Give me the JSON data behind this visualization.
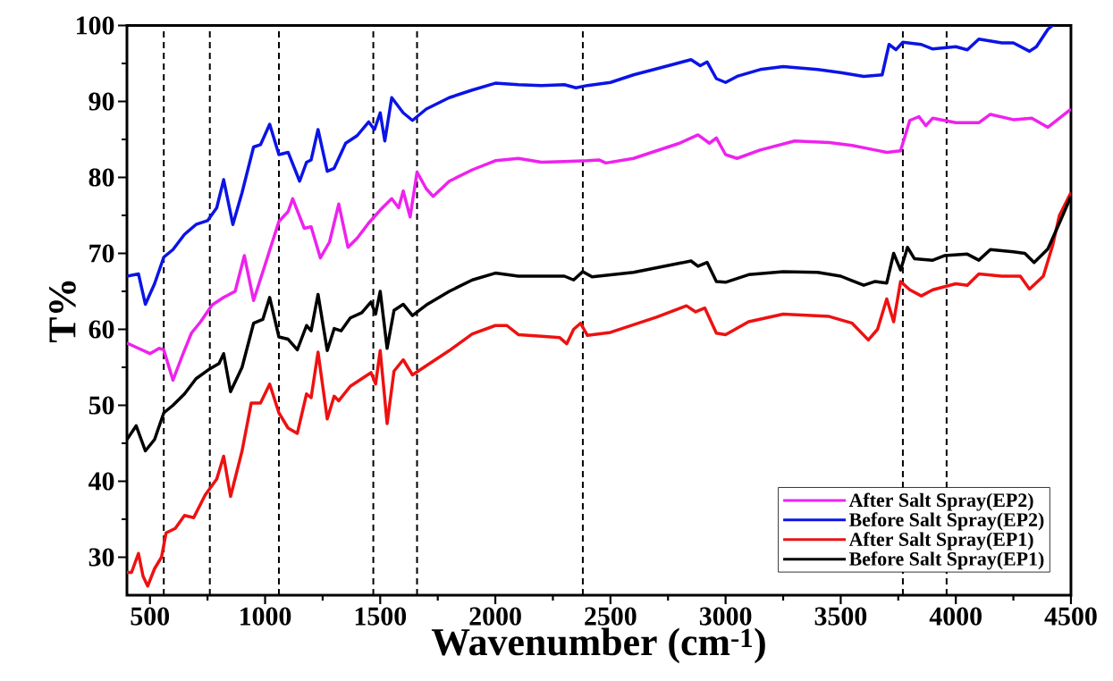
{
  "chart_data": {
    "type": "line",
    "xlabel": "Wavenumber (cm$^{-1}$)",
    "ylabel": "T%",
    "xlim": [
      400,
      4500
    ],
    "ylim": [
      25,
      100
    ],
    "xticks": [
      500,
      1000,
      1500,
      2000,
      2500,
      3000,
      3500,
      4000,
      4500
    ],
    "yticks": [
      30,
      40,
      50,
      60,
      70,
      80,
      90,
      100
    ],
    "legend": "bottom right",
    "grid": false,
    "marker": "none",
    "line_style": "solid",
    "ref_lines": [
      {
        "axis": "x",
        "value": 560,
        "line_style": "dashed",
        "color": "#000000"
      },
      {
        "axis": "x",
        "value": 760,
        "line_style": "dashed",
        "color": "#000000"
      },
      {
        "axis": "x",
        "value": 1060,
        "line_style": "dashed",
        "color": "#000000"
      },
      {
        "axis": "x",
        "value": 1470,
        "line_style": "dashed",
        "color": "#000000"
      },
      {
        "axis": "x",
        "value": 1660,
        "line_style": "dashed",
        "color": "#000000"
      },
      {
        "axis": "x",
        "value": 2380,
        "line_style": "dashed",
        "color": "#000000"
      },
      {
        "axis": "x",
        "value": 3770,
        "line_style": "dashed",
        "color": "#000000"
      },
      {
        "axis": "x",
        "value": 3960,
        "line_style": "dashed",
        "color": "#000000"
      }
    ],
    "series": [
      {
        "name": "After Salt Spray(EP2)",
        "color": "#ee22ee",
        "x": [
          400,
          450,
          500,
          540,
          560,
          600,
          640,
          680,
          720,
          770,
          820,
          870,
          910,
          950,
          1000,
          1060,
          1100,
          1120,
          1170,
          1200,
          1240,
          1280,
          1320,
          1360,
          1400,
          1450,
          1500,
          1550,
          1580,
          1600,
          1630,
          1660,
          1700,
          1730,
          1800,
          1900,
          2000,
          2100,
          2200,
          2300,
          2400,
          2450,
          2480,
          2600,
          2700,
          2800,
          2880,
          2930,
          2960,
          3000,
          3050,
          3150,
          3300,
          3450,
          3550,
          3650,
          3700,
          3760,
          3800,
          3840,
          3870,
          3900,
          4000,
          4100,
          4150,
          4250,
          4330,
          4400,
          4500
        ],
        "values": [
          58.2,
          57.5,
          56.8,
          57.5,
          57.3,
          53.3,
          56.5,
          59.5,
          61,
          63.2,
          64.2,
          65,
          69.7,
          63.8,
          68.5,
          74.2,
          75.5,
          77.2,
          73.3,
          73.5,
          69.4,
          71.5,
          76.5,
          70.8,
          72,
          74,
          75.7,
          77.2,
          76,
          78.2,
          74.8,
          80.7,
          78.5,
          77.5,
          79.5,
          81,
          82.2,
          82.5,
          82,
          82.1,
          82.2,
          82.3,
          81.9,
          82.5,
          83.5,
          84.5,
          85.6,
          84.5,
          85.2,
          83,
          82.5,
          83.6,
          84.8,
          84.6,
          84.2,
          83.6,
          83.3,
          83.5,
          87.5,
          88,
          86.8,
          87.8,
          87.2,
          87.2,
          88.3,
          87.6,
          87.8,
          86.6,
          89
        ]
      },
      {
        "name": "Before Salt Spray(EP2)",
        "color": "#0a14e6",
        "x": [
          400,
          450,
          480,
          520,
          560,
          600,
          650,
          700,
          750,
          790,
          820,
          860,
          900,
          950,
          980,
          1020,
          1060,
          1100,
          1150,
          1180,
          1200,
          1230,
          1270,
          1300,
          1350,
          1400,
          1450,
          1475,
          1500,
          1520,
          1550,
          1600,
          1640,
          1700,
          1800,
          1900,
          2000,
          2100,
          2200,
          2300,
          2350,
          2400,
          2500,
          2600,
          2700,
          2850,
          2890,
          2920,
          2960,
          3000,
          3050,
          3150,
          3250,
          3400,
          3500,
          3600,
          3680,
          3710,
          3740,
          3770,
          3850,
          3900,
          4000,
          4050,
          4100,
          4200,
          4250,
          4320,
          4350,
          4400,
          4420
        ],
        "values": [
          67,
          67.3,
          63.3,
          66,
          69.5,
          70.5,
          72.5,
          73.8,
          74.3,
          76,
          79.7,
          73.8,
          78,
          84,
          84.3,
          87,
          83,
          83.3,
          79.5,
          82,
          82.3,
          86.3,
          80.8,
          81.2,
          84.5,
          85.5,
          87.3,
          86.3,
          88.5,
          84.8,
          90.5,
          88.5,
          87.5,
          89,
          90.5,
          91.5,
          92.4,
          92.2,
          92.1,
          92.2,
          91.8,
          92.1,
          92.5,
          93.5,
          94.3,
          95.5,
          94.7,
          95.2,
          93,
          92.5,
          93.3,
          94.2,
          94.6,
          94.2,
          93.8,
          93.3,
          93.5,
          97.5,
          96.8,
          97.8,
          97.5,
          96.9,
          97.2,
          96.8,
          98.2,
          97.7,
          97.7,
          96.6,
          97.2,
          99.5,
          100
        ]
      },
      {
        "name": "After Salt Spray(EP1)",
        "color": "#ee1111",
        "x": [
          400,
          420,
          450,
          470,
          490,
          520,
          550,
          570,
          610,
          650,
          690,
          740,
          790,
          820,
          850,
          900,
          940,
          980,
          1020,
          1060,
          1100,
          1140,
          1180,
          1200,
          1230,
          1270,
          1300,
          1320,
          1370,
          1420,
          1460,
          1480,
          1500,
          1530,
          1560,
          1600,
          1640,
          1700,
          1800,
          1900,
          2000,
          2050,
          2100,
          2200,
          2280,
          2310,
          2340,
          2370,
          2400,
          2500,
          2700,
          2830,
          2870,
          2910,
          2960,
          3000,
          3100,
          3250,
          3450,
          3550,
          3620,
          3660,
          3700,
          3730,
          3760,
          3800,
          3850,
          3900,
          4000,
          4050,
          4100,
          4200,
          4280,
          4320,
          4380,
          4420,
          4450,
          4500
        ],
        "values": [
          28,
          28,
          30.5,
          27.5,
          26.2,
          28.5,
          30,
          33.2,
          33.8,
          35.5,
          35.2,
          38.2,
          40.3,
          43.3,
          38,
          44,
          50.3,
          50.3,
          52.8,
          49,
          47,
          46.3,
          51.5,
          51,
          57,
          48.2,
          51.2,
          50.6,
          52.5,
          53.5,
          54.3,
          52.8,
          57.2,
          47.6,
          54.5,
          56,
          54,
          55.2,
          57.2,
          59.4,
          60.5,
          60.5,
          59.3,
          59.1,
          58.9,
          58.1,
          60,
          60.8,
          59.2,
          59.6,
          61.6,
          63.1,
          62.3,
          62.8,
          59.5,
          59.3,
          61,
          62,
          61.7,
          60.8,
          58.6,
          60,
          64,
          61,
          66.3,
          65.2,
          64.4,
          65.2,
          66,
          65.8,
          67.3,
          67,
          67,
          65.3,
          67,
          71,
          75,
          78
        ]
      },
      {
        "name": "Before Salt Spray(EP1)",
        "color": "#000000",
        "x": [
          400,
          440,
          480,
          520,
          560,
          600,
          650,
          700,
          760,
          800,
          820,
          850,
          900,
          950,
          990,
          1020,
          1060,
          1100,
          1140,
          1180,
          1200,
          1230,
          1270,
          1300,
          1330,
          1370,
          1420,
          1460,
          1480,
          1500,
          1530,
          1560,
          1600,
          1640,
          1700,
          1800,
          1900,
          2000,
          2100,
          2200,
          2300,
          2340,
          2380,
          2420,
          2600,
          2800,
          2850,
          2880,
          2920,
          2960,
          3000,
          3100,
          3250,
          3400,
          3500,
          3550,
          3600,
          3650,
          3700,
          3730,
          3760,
          3790,
          3820,
          3900,
          3950,
          4050,
          4100,
          4150,
          4250,
          4300,
          4340,
          4400,
          4450,
          4500
        ],
        "values": [
          45.5,
          47.3,
          44,
          45.5,
          49,
          50,
          51.5,
          53.5,
          54.8,
          55.5,
          56.8,
          51.8,
          55,
          60.8,
          61.3,
          64.2,
          59,
          58.7,
          57.3,
          60.5,
          59.8,
          64.6,
          57.2,
          60.1,
          59.8,
          61.5,
          62.2,
          63.6,
          62,
          65,
          57.5,
          62.5,
          63.3,
          61.8,
          63.2,
          65,
          66.5,
          67.4,
          67,
          67,
          67,
          66.5,
          67.6,
          66.9,
          67.5,
          68.7,
          69,
          68.3,
          68.8,
          66.3,
          66.2,
          67.2,
          67.6,
          67.5,
          67,
          66.4,
          65.8,
          66.3,
          66.1,
          70,
          67.8,
          70.8,
          69.3,
          69.1,
          69.7,
          69.9,
          69.1,
          70.5,
          70.2,
          70,
          68.8,
          70.6,
          74,
          77.5
        ]
      }
    ]
  }
}
